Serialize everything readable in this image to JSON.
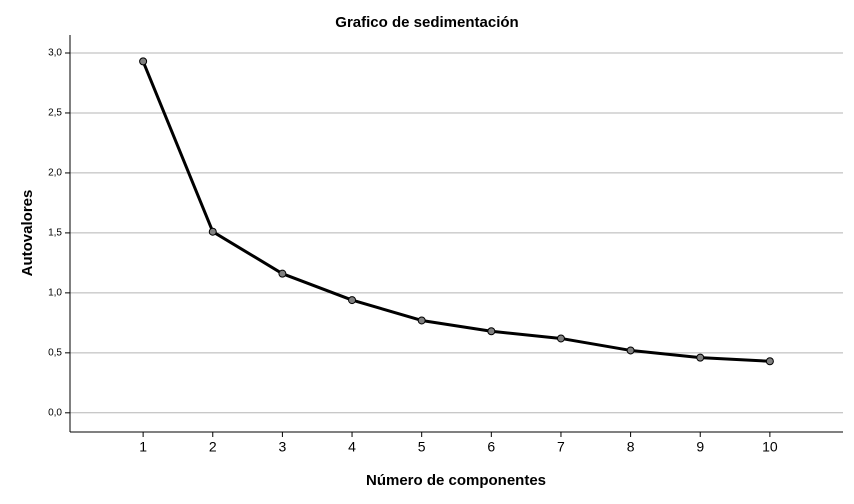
{
  "chart_data": {
    "type": "line",
    "title": "Grafico de sedimentación",
    "x_label": "Número de componentes",
    "y_label": "Autovalores",
    "x": [
      1,
      2,
      3,
      4,
      5,
      6,
      7,
      8,
      9,
      10
    ],
    "series": [
      {
        "name": "Autovalores",
        "color": "#000000",
        "marker_color": "#808080",
        "values": [
          2.93,
          1.51,
          1.16,
          0.94,
          0.77,
          0.68,
          0.62,
          0.52,
          0.46,
          0.43
        ]
      }
    ],
    "xlim": [
      -0.05,
      11.05
    ],
    "xticks": [
      1,
      2,
      3,
      4,
      5,
      6,
      7,
      8,
      9,
      10
    ],
    "ylim": [
      -0.16,
      3.15
    ],
    "yticks": [
      {
        "value": 0,
        "label": "0,0"
      },
      {
        "value": 0.5,
        "label": "0,5"
      },
      {
        "value": 1,
        "label": "1,0"
      },
      {
        "value": 1.5,
        "label": "1,5"
      },
      {
        "value": 2,
        "label": "2,0"
      },
      {
        "value": 2.5,
        "label": "2,5"
      },
      {
        "value": 3,
        "label": "3,0"
      }
    ],
    "grid": true
  }
}
